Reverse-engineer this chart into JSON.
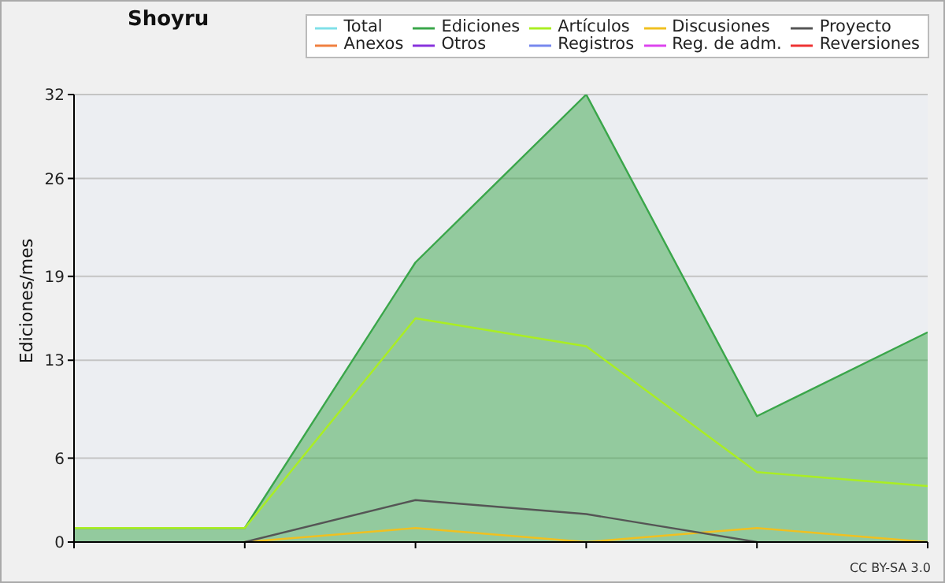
{
  "chart_data": {
    "type": "line",
    "title": "Shoyru",
    "ylabel": "Ediciones/mes",
    "categories": [
      null,
      null,
      null,
      null,
      null,
      null
    ],
    "series": [
      {
        "name": "Total",
        "color": "#80e0e8",
        "values": [
          null,
          null,
          null,
          null,
          null,
          null
        ]
      },
      {
        "name": "Ediciones",
        "type": "area",
        "color": "#3aa64a",
        "values": [
          1,
          1,
          20,
          32,
          9,
          15
        ]
      },
      {
        "name": "Artículos",
        "color": "#aaee22",
        "values": [
          1,
          1,
          16,
          14,
          5,
          4
        ]
      },
      {
        "name": "Discusiones",
        "color": "#f0c020",
        "values": [
          null,
          0,
          1,
          0,
          1,
          0
        ]
      },
      {
        "name": "Proyecto",
        "color": "#555555",
        "values": [
          null,
          0,
          3,
          2,
          0,
          null
        ]
      },
      {
        "name": "Anexos",
        "color": "#f08040",
        "values": [
          null,
          null,
          null,
          null,
          null,
          null
        ]
      },
      {
        "name": "Otros",
        "color": "#8833dd",
        "values": [
          null,
          null,
          null,
          null,
          null,
          null
        ]
      },
      {
        "name": "Registros",
        "color": "#7788ee",
        "values": [
          null,
          null,
          null,
          null,
          null,
          null
        ]
      },
      {
        "name": "Reg. de adm.",
        "color": "#dd44ee",
        "values": [
          null,
          null,
          null,
          null,
          null,
          null
        ]
      },
      {
        "name": "Reversiones",
        "color": "#ee3333",
        "values": [
          null,
          null,
          null,
          null,
          null,
          null
        ]
      }
    ],
    "ylim": [
      0,
      32
    ],
    "yticks": [
      0,
      6,
      13,
      19,
      26,
      32
    ],
    "grid": "y",
    "legend": "top right",
    "annotations": [
      "CC BY-SA 3.0"
    ]
  }
}
